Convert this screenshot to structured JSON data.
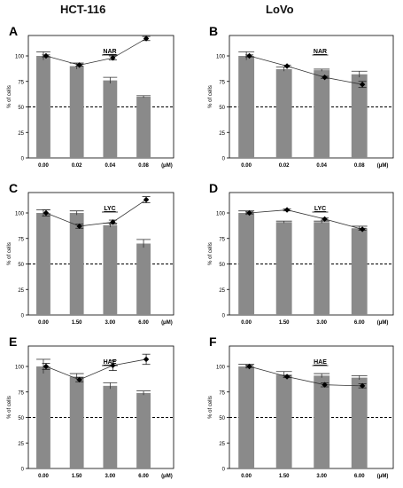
{
  "columns": [
    "HCT-116",
    "LoVo"
  ],
  "chart_data": [
    {
      "letter": "A",
      "type": "bar+line",
      "title": "NAR",
      "categories": [
        "0.00",
        "0.02",
        "0.04",
        "0.08"
      ],
      "unit": "(μM)",
      "ylabel": "% of cells",
      "ylim": [
        0,
        120
      ],
      "yticks": [
        0,
        25,
        50,
        75,
        100
      ],
      "reference_line": 50,
      "bars": [
        100,
        90,
        76,
        60
      ],
      "bar_errors": [
        4,
        3,
        3,
        1
      ],
      "line": [
        100,
        91,
        98,
        117
      ],
      "line_errors": [
        1,
        1,
        2,
        2
      ]
    },
    {
      "letter": "B",
      "type": "bar+line",
      "title": "NAR",
      "categories": [
        "0.00",
        "0.02",
        "0.04",
        "0.08"
      ],
      "unit": "(μM)",
      "ylabel": "% of cells",
      "ylim": [
        0,
        120
      ],
      "yticks": [
        0,
        25,
        50,
        75,
        100
      ],
      "reference_line": 50,
      "bars": [
        100,
        87,
        86,
        82
      ],
      "bar_errors": [
        4,
        2,
        1,
        3
      ],
      "line": [
        100,
        90,
        79,
        72
      ],
      "line_errors": [
        1,
        1,
        1,
        3
      ]
    },
    {
      "letter": "C",
      "type": "bar+line",
      "title": "LYC",
      "categories": [
        "0.00",
        "1.50",
        "3.00",
        "6.00"
      ],
      "unit": "(μM)",
      "ylabel": "% of cells",
      "ylim": [
        0,
        120
      ],
      "yticks": [
        0,
        25,
        50,
        75,
        100
      ],
      "reference_line": 50,
      "bars": [
        100,
        100,
        88,
        70
      ],
      "bar_errors": [
        3,
        2,
        2,
        4
      ],
      "line": [
        100,
        87,
        91,
        113
      ],
      "line_errors": [
        3,
        2,
        2,
        3
      ]
    },
    {
      "letter": "D",
      "type": "bar+line",
      "title": "LYC",
      "categories": [
        "0.00",
        "1.50",
        "3.00",
        "6.00"
      ],
      "unit": "(μM)",
      "ylabel": "% of cells",
      "ylim": [
        0,
        120
      ],
      "yticks": [
        0,
        25,
        50,
        75,
        100
      ],
      "reference_line": 50,
      "bars": [
        100,
        91,
        91,
        85
      ],
      "bar_errors": [
        2,
        1,
        1,
        2
      ],
      "line": [
        100,
        103,
        94,
        84
      ],
      "line_errors": [
        1,
        1,
        1,
        1
      ]
    },
    {
      "letter": "E",
      "type": "bar+line",
      "title": "HAE",
      "categories": [
        "0.00",
        "1.50",
        "3.00",
        "6.00"
      ],
      "unit": "(μM)",
      "ylabel": "% of cells",
      "ylim": [
        0,
        120
      ],
      "yticks": [
        0,
        25,
        50,
        75,
        100
      ],
      "reference_line": 50,
      "bars": [
        100,
        90,
        81,
        74
      ],
      "bar_errors": [
        7,
        3,
        3,
        2
      ],
      "line": [
        100,
        87,
        101,
        107
      ],
      "line_errors": [
        3,
        2,
        5,
        5
      ]
    },
    {
      "letter": "F",
      "type": "bar+line",
      "title": "HAE",
      "categories": [
        "0.00",
        "1.50",
        "3.00",
        "6.00"
      ],
      "unit": "(μM)",
      "ylabel": "% of cells",
      "ylim": [
        0,
        120
      ],
      "yticks": [
        0,
        25,
        50,
        75,
        100
      ],
      "reference_line": 50,
      "bars": [
        100,
        92,
        91,
        89
      ],
      "bar_errors": [
        2,
        3,
        2,
        2
      ],
      "line": [
        100,
        90,
        82,
        81
      ],
      "line_errors": [
        1,
        1,
        2,
        2
      ]
    }
  ]
}
